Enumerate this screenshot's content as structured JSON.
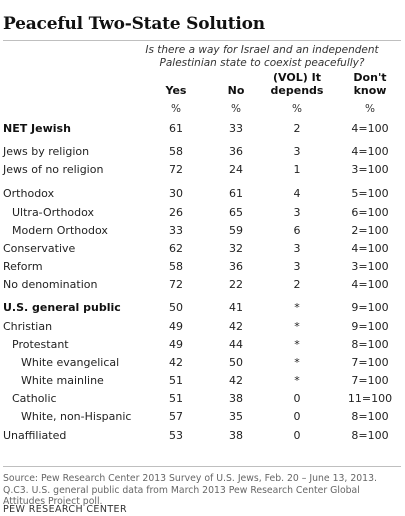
{
  "title": "Peaceful Two-State Solution",
  "question": "Is there a way for Israel and an independent Palestinian state to coexist peacefully?",
  "columns": [
    {
      "key": "yes",
      "header": "Yes",
      "unit": "%"
    },
    {
      "key": "no",
      "header": "No",
      "unit": "%"
    },
    {
      "key": "depends",
      "header": "(VOL) It depends",
      "unit": "%"
    },
    {
      "key": "dk",
      "header": "Don't know",
      "unit": "%"
    }
  ],
  "chart_data": {
    "type": "table",
    "title": "Peaceful Two-State Solution",
    "columns": [
      "Yes",
      "No",
      "(VOL) It depends",
      "Don't know"
    ],
    "rows": [
      {
        "label": "NET Jewish",
        "bold": true,
        "indent": 0,
        "values": [
          "61",
          "33",
          "2",
          "4=100"
        ]
      },
      {
        "label": "Jews by religion",
        "bold": false,
        "indent": 0,
        "values": [
          "58",
          "36",
          "3",
          "4=100"
        ]
      },
      {
        "label": "Jews of no religion",
        "bold": false,
        "indent": 0,
        "values": [
          "72",
          "24",
          "1",
          "3=100"
        ]
      },
      {
        "label": "Orthodox",
        "bold": false,
        "indent": 0,
        "values": [
          "30",
          "61",
          "4",
          "5=100"
        ]
      },
      {
        "label": "Ultra-Orthodox",
        "bold": false,
        "indent": 1,
        "values": [
          "26",
          "65",
          "3",
          "6=100"
        ]
      },
      {
        "label": "Modern Orthodox",
        "bold": false,
        "indent": 1,
        "values": [
          "33",
          "59",
          "6",
          "2=100"
        ]
      },
      {
        "label": "Conservative",
        "bold": false,
        "indent": 0,
        "values": [
          "62",
          "32",
          "3",
          "4=100"
        ]
      },
      {
        "label": "Reform",
        "bold": false,
        "indent": 0,
        "values": [
          "58",
          "36",
          "3",
          "3=100"
        ]
      },
      {
        "label": "No denomination",
        "bold": false,
        "indent": 0,
        "values": [
          "72",
          "22",
          "2",
          "4=100"
        ]
      },
      {
        "label": "U.S. general public",
        "bold": true,
        "indent": 0,
        "values": [
          "50",
          "41",
          "*",
          "9=100"
        ]
      },
      {
        "label": "Christian",
        "bold": false,
        "indent": 0,
        "values": [
          "49",
          "42",
          "*",
          "9=100"
        ]
      },
      {
        "label": "Protestant",
        "bold": false,
        "indent": 1,
        "values": [
          "49",
          "44",
          "*",
          "8=100"
        ]
      },
      {
        "label": "White evangelical",
        "bold": false,
        "indent": 2,
        "values": [
          "42",
          "50",
          "*",
          "7=100"
        ]
      },
      {
        "label": "White mainline",
        "bold": false,
        "indent": 2,
        "values": [
          "51",
          "42",
          "*",
          "7=100"
        ]
      },
      {
        "label": "Catholic",
        "bold": false,
        "indent": 1,
        "values": [
          "51",
          "38",
          "0",
          "11=100"
        ]
      },
      {
        "label": "White, non-Hispanic",
        "bold": false,
        "indent": 2,
        "values": [
          "57",
          "35",
          "0",
          "8=100"
        ]
      },
      {
        "label": "Unaffiliated",
        "bold": false,
        "indent": 0,
        "values": [
          "53",
          "38",
          "0",
          "8=100"
        ]
      }
    ]
  },
  "source": "Source: Pew Research Center 2013 Survey of U.S. Jews, Feb. 20 – June 13, 2013. Q.C3. U.S. general public data from March 2013 Pew Research Center Global Attitudes Project poll.",
  "credit": "PEW RESEARCH CENTER"
}
